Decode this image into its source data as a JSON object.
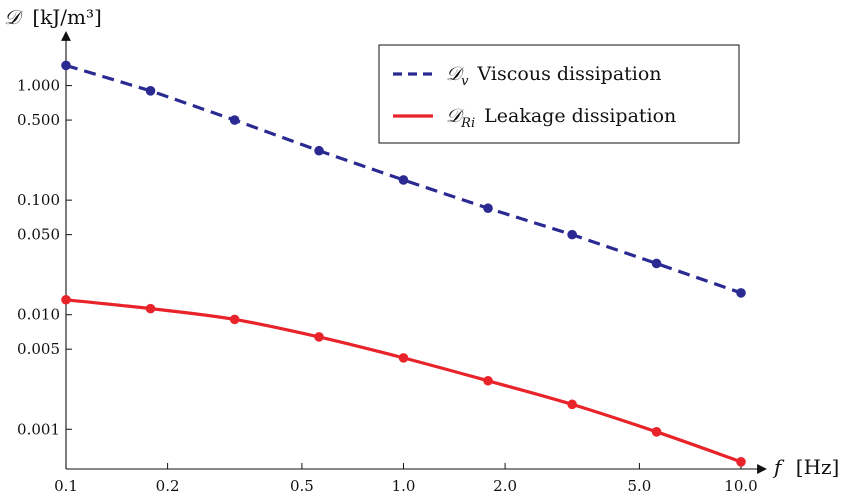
{
  "chart_data": {
    "type": "line",
    "scale": {
      "x": "log",
      "y": "log"
    },
    "xlabel": {
      "symbol": "f",
      "unit": "[Hz]"
    },
    "ylabel": {
      "symbol": "𝒟",
      "unit": "[kJ/m³]"
    },
    "xlim": [
      0.1,
      10.0
    ],
    "ylim": [
      0.00045,
      2.5
    ],
    "x_ticks": [
      0.1,
      0.2,
      0.5,
      1.0,
      2.0,
      5.0,
      10.0
    ],
    "x_tick_labels": [
      "0.1",
      "0.2",
      "0.5",
      "1.0",
      "2.0",
      "5.0",
      "10.0"
    ],
    "y_ticks": [
      0.001,
      0.005,
      0.01,
      0.05,
      0.1,
      0.5,
      1.0
    ],
    "y_tick_labels": [
      "0.001",
      "0.005",
      "0.010",
      "0.050",
      "0.100",
      "0.500",
      "1.000"
    ],
    "grid": false,
    "legend_position": "top-right",
    "series": [
      {
        "symbol": "𝒟",
        "subscript": "v",
        "name": "Viscous dissipation",
        "color": "#2a2a92",
        "style": "dashed",
        "markers": true,
        "x": [
          0.1,
          0.178,
          0.316,
          0.562,
          1.0,
          1.78,
          3.16,
          5.62,
          10.0
        ],
        "y": [
          1.5,
          0.9,
          0.5,
          0.27,
          0.15,
          0.085,
          0.05,
          0.028,
          0.0155
        ]
      },
      {
        "symbol": "𝒟",
        "subscript": "Ri",
        "name": "Leakage dissipation",
        "color": "#e8232a",
        "style": "solid",
        "markers": true,
        "x": [
          0.1,
          0.178,
          0.316,
          0.562,
          1.0,
          1.78,
          3.16,
          5.62,
          10.0
        ],
        "y": [
          0.0135,
          0.0113,
          0.0091,
          0.0064,
          0.0042,
          0.00265,
          0.00165,
          0.00095,
          0.00052
        ]
      }
    ]
  }
}
